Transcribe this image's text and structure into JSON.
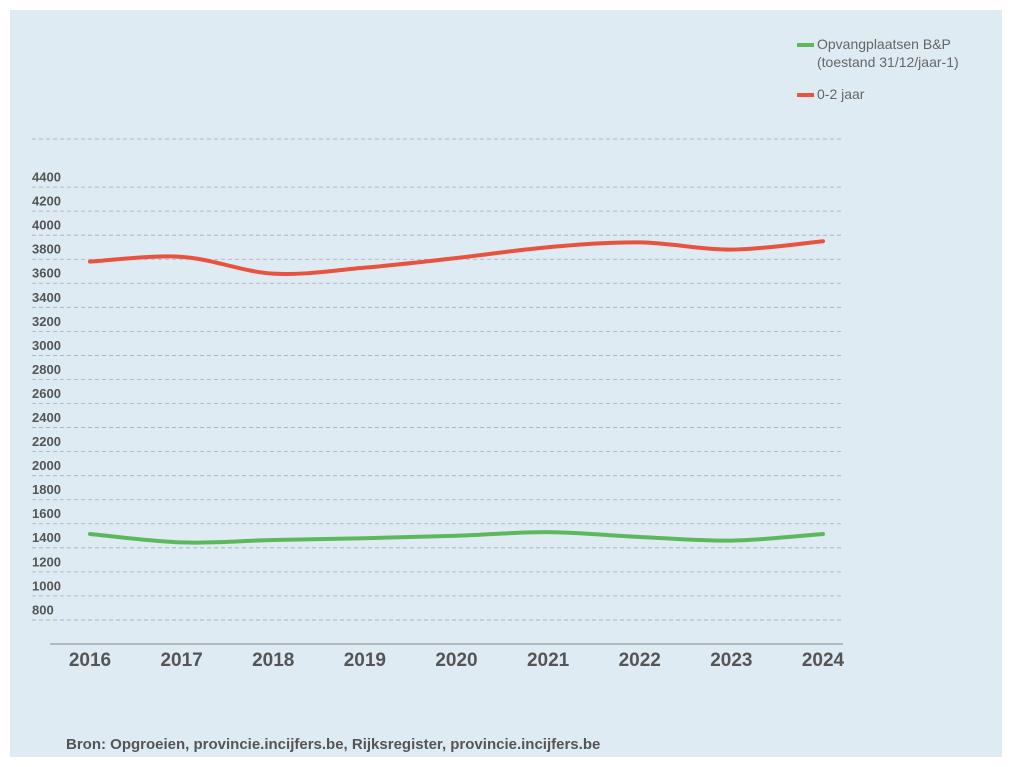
{
  "chart_data": {
    "type": "line",
    "x": [
      "2016",
      "2017",
      "2018",
      "2019",
      "2020",
      "2021",
      "2022",
      "2023",
      "2024"
    ],
    "series": [
      {
        "name": "Opvangplaatsen B&P\n(toestand 31/12/jaar-1)",
        "color": "#5cb85c",
        "values": [
          1515,
          1445,
          1465,
          1480,
          1500,
          1530,
          1490,
          1460,
          1515
        ]
      },
      {
        "name": "0-2 jaar",
        "color": "#e8533f",
        "values": [
          3780,
          3820,
          3680,
          3730,
          3810,
          3900,
          3940,
          3880,
          3950
        ]
      }
    ],
    "ylim": [
      600,
      4800
    ],
    "yticks": [
      800,
      1000,
      1200,
      1400,
      1600,
      1800,
      2000,
      2200,
      2400,
      2600,
      2800,
      3000,
      3200,
      3400,
      3600,
      3800,
      4000,
      4200,
      4400
    ],
    "grid": true,
    "legend": "top-right",
    "source": "Bron: Opgroeien, provincie.incijfers.be, Rijksregister, provincie.incijfers.be"
  }
}
